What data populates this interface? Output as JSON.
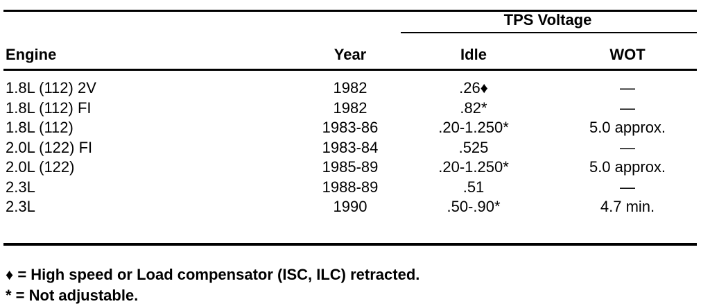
{
  "table": {
    "group_header": "TPS Voltage",
    "headers": [
      "Engine",
      "Year",
      "Idle",
      "WOT"
    ],
    "rows": [
      [
        "1.8L (112) 2V",
        "1982",
        ".26♦",
        "—"
      ],
      [
        "1.8L (112) FI",
        "1982",
        ".82*",
        "—"
      ],
      [
        "1.8L (112)",
        "1983-86",
        ".20-1.250*",
        "5.0 approx."
      ],
      [
        "2.0L (122) FI",
        "1983-84",
        ".525",
        "—"
      ],
      [
        "2.0L (122)",
        "1985-89",
        ".20-1.250*",
        "5.0 approx."
      ],
      [
        "2.3L",
        "1988-89",
        ".51",
        "—"
      ],
      [
        "2.3L",
        "1990",
        ".50-.90*",
        "4.7 min."
      ]
    ]
  },
  "footnotes": [
    "♦ = High speed or Load compensator (ISC, ILC) retracted.",
    "* = Not adjustable."
  ]
}
